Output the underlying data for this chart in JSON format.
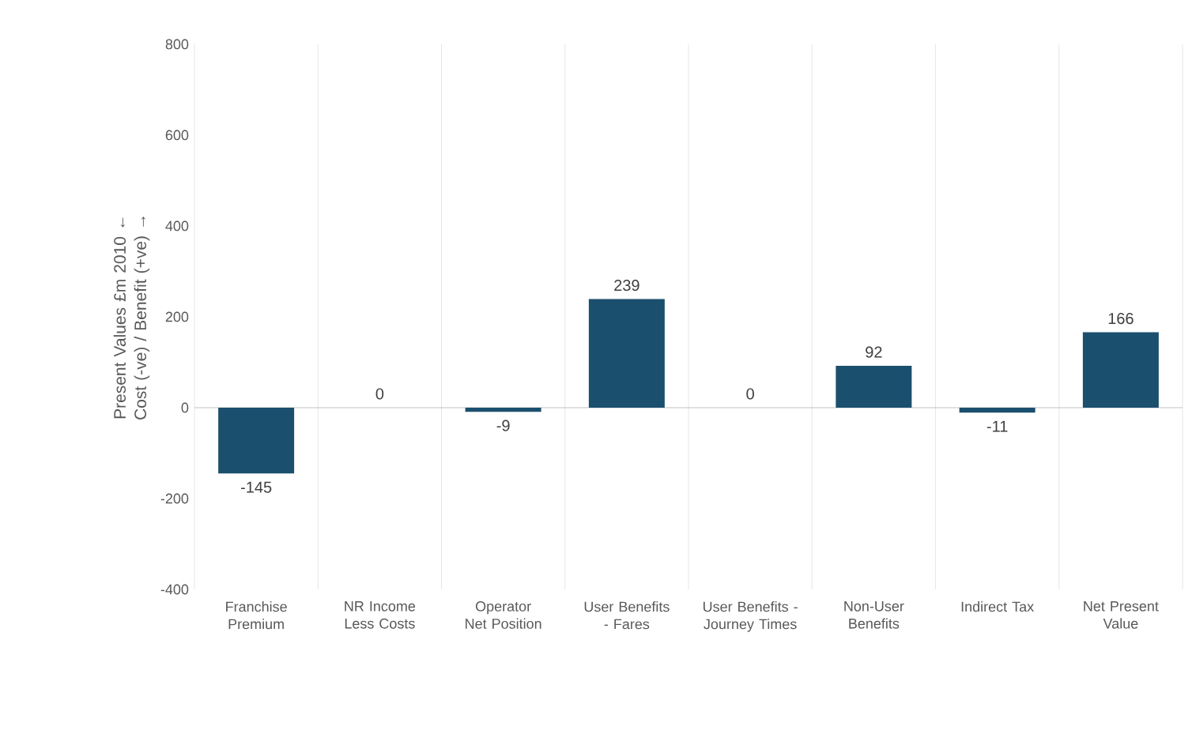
{
  "chart_data": {
    "type": "bar",
    "ylabel": "Present Values £m 2010 ← Cost (-ve)  /  Benefit (+ve) →",
    "categories": [
      "Franchise Premium",
      "NR Income Less Costs",
      "Operator Net Position",
      "User Benefits - Fares",
      "User Benefits - Journey Times",
      "Non-User Benefits",
      "Indirect Tax",
      "Net Present Value"
    ],
    "values": [
      -145,
      0,
      -9,
      239,
      0,
      92,
      -11,
      166
    ],
    "color": "#1b4f6e",
    "ylim": [
      -400,
      800
    ],
    "yticks": [
      -400,
      -200,
      0,
      200,
      400,
      600,
      800
    ],
    "grid": "x",
    "data_labels": true
  }
}
